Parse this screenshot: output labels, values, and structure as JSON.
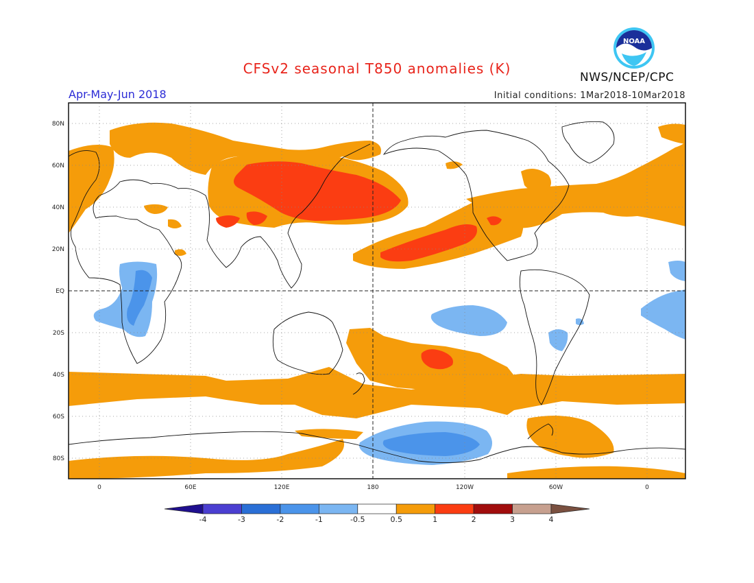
{
  "header": {
    "title": "CFSv2 seasonal T850 anomalies (K)",
    "period": "Apr-May-Jun 2018",
    "initial_conditions": "Initial conditions: 1Mar2018-10Mar2018",
    "agency": "NWS/NCEP/CPC",
    "logo_text": "NOAA"
  },
  "map": {
    "lat_labels": [
      "80N",
      "60N",
      "40N",
      "20N",
      "EQ",
      "20S",
      "40S",
      "60S",
      "80S"
    ],
    "lon_labels": [
      "0",
      "60E",
      "120E",
      "180",
      "120W",
      "60W",
      "0"
    ],
    "lon_range": [
      -20,
      380
    ],
    "lat_range": [
      -90,
      90
    ],
    "grid": "dotted",
    "reference_lines": "equator and dateline dashed"
  },
  "colorbar": {
    "levels": [
      "-4",
      "-3",
      "-2",
      "-1",
      "-0.5",
      "0.5",
      "1",
      "2",
      "3",
      "4"
    ],
    "colors": [
      "#1f0f8f",
      "#4b3fd1",
      "#2a6fd6",
      "#4b94ea",
      "#7bb6f2",
      "#ffffff",
      "#f59c0a",
      "#fb3d12",
      "#a10d0d",
      "#c7a08f",
      "#7a5040"
    ]
  },
  "chart_data": {
    "type": "heatmap",
    "title": "CFSv2 seasonal T850 anomalies (K)",
    "variable": "850 hPa temperature anomaly",
    "units": "K",
    "anomaly_regions": [
      {
        "region": "North Pacific / East Asia",
        "category": "2",
        "lon": [
          110,
          200
        ],
        "lat": [
          20,
          60
        ]
      },
      {
        "region": "Subtropical NE Pacific",
        "category": "2",
        "lon": [
          185,
          250
        ],
        "lat": [
          12,
          30
        ]
      },
      {
        "region": "South Pacific",
        "category": "2",
        "lon": [
          210,
          225
        ],
        "lat": [
          -35,
          -25
        ]
      },
      {
        "region": "Southern Ocean belt",
        "category": "1",
        "lon": [
          -20,
          380
        ],
        "lat": [
          -55,
          -35
        ]
      },
      {
        "region": "Southern Africa",
        "category": "-1",
        "lon": [
          0,
          45
        ],
        "lat": [
          -30,
          15
        ]
      },
      {
        "region": "Equatorial E Pacific",
        "category": "-1",
        "lon": [
          210,
          245
        ],
        "lat": [
          -20,
          -5
        ]
      },
      {
        "region": "Antarctic coast (Ross Sea)",
        "category": "-1",
        "lon": [
          175,
          255
        ],
        "lat": [
          -80,
          -60
        ]
      },
      {
        "region": "South America",
        "category": "-1",
        "lon": [
          295,
          305
        ],
        "lat": [
          -30,
          -20
        ]
      }
    ]
  }
}
